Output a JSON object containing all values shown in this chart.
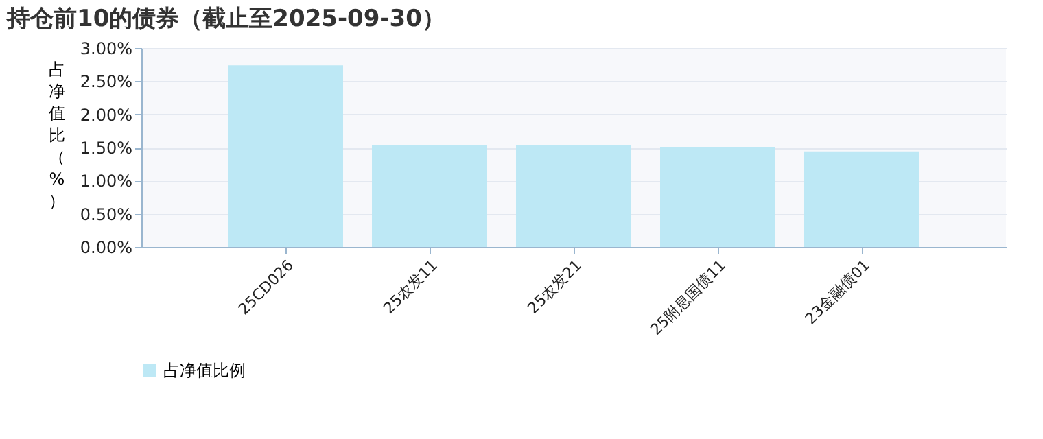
{
  "chart_data": {
    "type": "bar",
    "title": "持仓前10的债券（截止至2025-09-30）",
    "ylabel": "占净值比（%）",
    "categories": [
      "25CD026",
      "25农发11",
      "25农发21",
      "25附息国债11",
      "23金融债01"
    ],
    "series": [
      {
        "name": "占净值比例",
        "color": "#bde8f5",
        "values": [
          2.74,
          1.53,
          1.53,
          1.51,
          1.44
        ]
      }
    ],
    "ylim": [
      0,
      3
    ],
    "yticks": [
      {
        "value": 0,
        "label": "0.00%"
      },
      {
        "value": 0.5,
        "label": "0.50%"
      },
      {
        "value": 1,
        "label": "1.00%"
      },
      {
        "value": 1.5,
        "label": "1.50%"
      },
      {
        "value": 2,
        "label": "2.00%"
      },
      {
        "value": 2.5,
        "label": "2.50%"
      },
      {
        "value": 3,
        "label": "3.00%"
      }
    ],
    "grid": "y",
    "legend": "bottom"
  }
}
